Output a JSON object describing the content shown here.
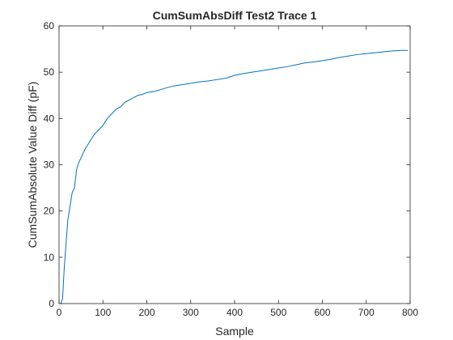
{
  "chart_data": {
    "type": "line",
    "title": "CumSumAbsDiff Test2 Trace 1",
    "xlabel": "Sample",
    "ylabel": "CumSumAbsolute Value Diff (pF)",
    "xlim": [
      0,
      800
    ],
    "ylim": [
      0,
      60
    ],
    "xticks": [
      "0",
      "100",
      "200",
      "300",
      "400",
      "500",
      "600",
      "700",
      "800"
    ],
    "yticks": [
      "0",
      "10",
      "20",
      "30",
      "40",
      "50",
      "60"
    ],
    "grid": false,
    "line_color": "#0072BD",
    "series": [
      {
        "x": [
          0,
          4,
          8,
          12,
          16,
          20,
          25,
          30,
          35,
          40,
          45,
          50,
          55,
          60,
          70,
          80,
          90,
          100,
          110,
          120,
          130,
          140,
          150,
          160,
          170,
          180,
          190,
          200,
          220,
          240,
          260,
          280,
          300,
          320,
          340,
          360,
          380,
          400,
          420,
          440,
          460,
          480,
          500,
          520,
          540,
          560,
          580,
          600,
          620,
          640,
          660,
          680,
          700,
          720,
          740,
          760,
          780,
          795
        ],
        "y": [
          0,
          0,
          1,
          8,
          13,
          18,
          21,
          24,
          25,
          29,
          30.5,
          31.5,
          32.5,
          33.5,
          35,
          36.5,
          37.5,
          38.5,
          40,
          41,
          42,
          42.5,
          43.5,
          44,
          44.5,
          45,
          45.2,
          45.6,
          45.9,
          46.5,
          47,
          47.3,
          47.6,
          47.9,
          48.1,
          48.4,
          48.7,
          49.3,
          49.7,
          50,
          50.3,
          50.6,
          50.9,
          51.2,
          51.6,
          52,
          52.2,
          52.5,
          52.8,
          53.2,
          53.5,
          53.8,
          54,
          54.2,
          54.4,
          54.6,
          54.7,
          54.7
        ]
      }
    ]
  }
}
